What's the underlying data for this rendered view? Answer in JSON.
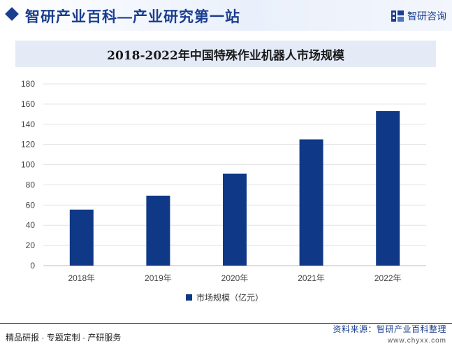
{
  "header": {
    "title": "智研产业百科—产业研究第一站",
    "brand_name": "智研咨询",
    "logo_icon": "zhiyan-logo-icon"
  },
  "chart_data": {
    "type": "bar",
    "title": "2018-2022年中国特殊作业机器人市场规模",
    "categories": [
      "2018年",
      "2019年",
      "2020年",
      "2021年",
      "2022年"
    ],
    "series": [
      {
        "name": "市场规模（亿元）",
        "values": [
          55.5,
          69.3,
          91,
          125,
          153
        ],
        "color": "#0f3887"
      }
    ],
    "yticks": [
      "0",
      "20",
      "40",
      "60",
      "80",
      "100",
      "120",
      "140",
      "160",
      "180"
    ],
    "ylim": [
      0,
      180
    ],
    "grid": true,
    "legend_position": "bottom"
  },
  "footer": {
    "left_text": "精品研报 · 专题定制 · 产研服务",
    "source": "资料来源：智研产业百科整理",
    "url": "www.chyxx.com"
  }
}
